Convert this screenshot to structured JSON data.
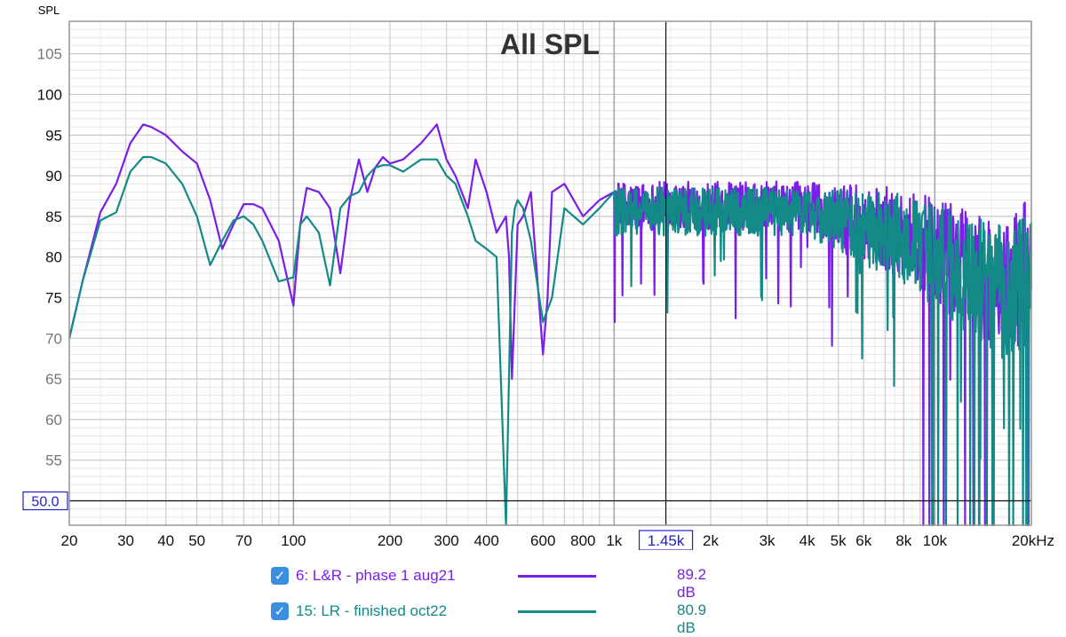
{
  "chart_data": {
    "type": "line",
    "title": "All SPL",
    "ylabel": "SPL",
    "xlabel": "",
    "x_scale": "log",
    "xlim": [
      20,
      20000
    ],
    "ylim": [
      47,
      109
    ],
    "grid": true,
    "y_ticks": [
      55,
      60,
      65,
      70,
      75,
      80,
      85,
      90,
      95,
      100,
      105
    ],
    "x_ticks": [
      {
        "v": 20,
        "label": "20"
      },
      {
        "v": 30,
        "label": "30"
      },
      {
        "v": 40,
        "label": "40"
      },
      {
        "v": 50,
        "label": "50"
      },
      {
        "v": 70,
        "label": "70"
      },
      {
        "v": 100,
        "label": "100"
      },
      {
        "v": 200,
        "label": "200"
      },
      {
        "v": 300,
        "label": "300"
      },
      {
        "v": 400,
        "label": "400"
      },
      {
        "v": 600,
        "label": "600"
      },
      {
        "v": 800,
        "label": "800"
      },
      {
        "v": 1000,
        "label": "1k"
      },
      {
        "v": 2000,
        "label": "2k"
      },
      {
        "v": 3000,
        "label": "3k"
      },
      {
        "v": 4000,
        "label": "4k"
      },
      {
        "v": 5000,
        "label": "5k"
      },
      {
        "v": 6000,
        "label": "6k"
      },
      {
        "v": 8000,
        "label": "8k"
      },
      {
        "v": 10000,
        "label": "10k"
      },
      {
        "v": 20000,
        "label": "20kHz"
      }
    ],
    "cursor": {
      "x": 1450,
      "x_label": "1.45k",
      "y": 50.0,
      "y_label": "50.0"
    },
    "series": [
      {
        "name": "6: L&R - phase 1 aug21",
        "color": "#7a1ee8",
        "legend_value": "89.2 dB",
        "x": [
          20,
          22,
          25,
          28,
          31,
          34,
          36,
          40,
          45,
          50,
          55,
          60,
          65,
          70,
          75,
          80,
          90,
          100,
          105,
          110,
          120,
          130,
          140,
          150,
          160,
          170,
          180,
          190,
          200,
          220,
          250,
          280,
          300,
          320,
          350,
          370,
          400,
          430,
          460,
          470,
          480,
          500,
          520,
          550,
          600,
          620,
          640,
          700,
          800,
          900,
          1000
        ],
        "y": [
          70,
          77,
          85.5,
          89,
          94,
          96.3,
          96,
          95,
          93,
          91.5,
          87,
          81,
          84,
          86.5,
          86.5,
          86,
          82,
          74,
          84,
          88.5,
          88,
          86,
          78,
          87,
          92,
          88,
          91,
          92.3,
          91.5,
          92,
          94,
          96.3,
          92,
          90,
          86,
          92,
          88,
          83,
          85,
          80,
          65,
          84,
          85,
          88,
          68,
          75,
          88,
          89,
          85,
          87,
          88
        ]
      },
      {
        "name": "15: LR - finished oct22",
        "color": "#138a87",
        "legend_value": "80.9 dB",
        "x": [
          20,
          22,
          25,
          28,
          31,
          34,
          36,
          40,
          45,
          50,
          55,
          60,
          65,
          70,
          75,
          80,
          90,
          100,
          105,
          110,
          120,
          130,
          140,
          150,
          160,
          170,
          180,
          190,
          200,
          220,
          250,
          280,
          300,
          320,
          350,
          370,
          400,
          430,
          460,
          480,
          490,
          500,
          520,
          550,
          600,
          640,
          700,
          800,
          900,
          1000
        ],
        "y": [
          70,
          77,
          84.5,
          85.5,
          90.5,
          92.3,
          92.3,
          91.5,
          89,
          85,
          79,
          82,
          84.5,
          85,
          84,
          82,
          77,
          77.5,
          84,
          85,
          83,
          76.5,
          86,
          87.5,
          88,
          90,
          91,
          91.3,
          91.3,
          90.5,
          92,
          92,
          90,
          89,
          85,
          82,
          81,
          80,
          47,
          83,
          86,
          87,
          86,
          82,
          72,
          75,
          86,
          84,
          86,
          88
        ]
      }
    ]
  },
  "legend": [
    {
      "checked": "✓",
      "label": "6: L&R - phase 1 aug21",
      "value": "89.2 dB"
    },
    {
      "checked": "✓",
      "label": "15: LR - finished oct22",
      "value": "80.9 dB"
    }
  ]
}
